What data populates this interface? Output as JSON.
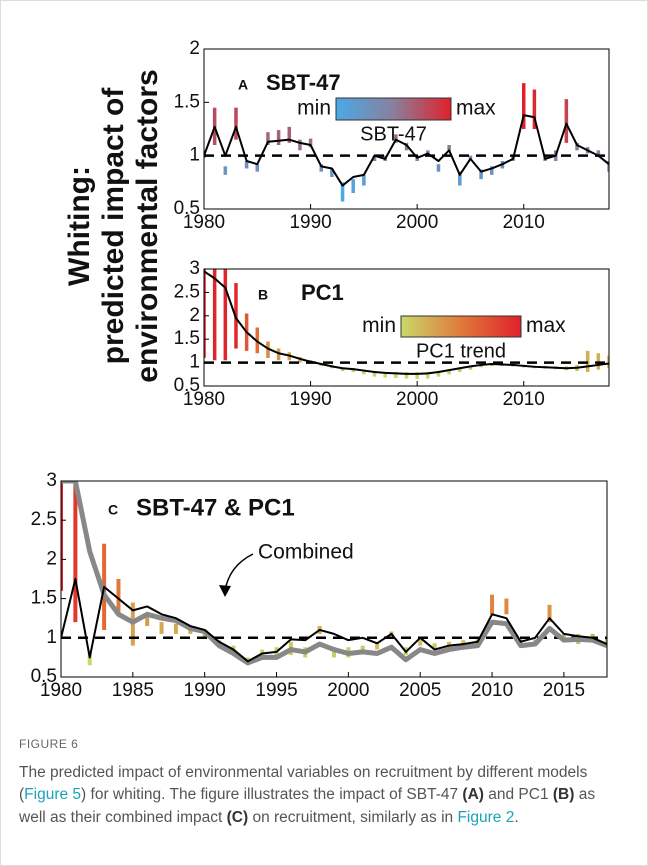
{
  "figure": {
    "y_label": [
      "Whiting:",
      "predicted impact of",
      "environmental factors"
    ]
  },
  "chart_data": [
    {
      "type": "line",
      "letter": "A",
      "title": "SBT-47",
      "x": [
        1980,
        1981,
        1982,
        1983,
        1984,
        1985,
        1986,
        1987,
        1988,
        1989,
        1990,
        1991,
        1992,
        1993,
        1994,
        1995,
        1996,
        1997,
        1998,
        1999,
        2000,
        2001,
        2002,
        2003,
        2004,
        2005,
        2006,
        2007,
        2008,
        2009,
        2010,
        2011,
        2012,
        2013,
        2014,
        2015,
        2016,
        2017,
        2018
      ],
      "series": [
        {
          "color": "#000000",
          "values": [
            1.0,
            1.27,
            1.0,
            1.27,
            0.95,
            0.92,
            1.13,
            1.14,
            1.15,
            1.12,
            1.1,
            0.9,
            0.88,
            0.72,
            0.8,
            0.82,
            1.0,
            0.97,
            1.15,
            1.1,
            0.98,
            1.02,
            0.95,
            1.05,
            0.82,
            0.97,
            0.85,
            0.88,
            0.92,
            0.97,
            1.38,
            1.36,
            0.97,
            1.0,
            1.3,
            1.1,
            1.05,
            1.0,
            0.92
          ]
        }
      ],
      "bars": {
        "low": [
          0.98,
          1.1,
          0.82,
          1.15,
          0.88,
          0.85,
          1.1,
          1.1,
          1.12,
          1.05,
          1.08,
          0.85,
          0.8,
          0.57,
          0.65,
          0.72,
          0.95,
          0.95,
          1.12,
          1.05,
          0.95,
          1.0,
          0.85,
          1.05,
          0.72,
          0.95,
          0.78,
          0.82,
          0.88,
          0.95,
          1.25,
          1.25,
          0.95,
          0.95,
          1.12,
          1.05,
          1.02,
          1.0,
          0.85
        ],
        "high": [
          1.02,
          1.45,
          0.9,
          1.45,
          0.95,
          0.92,
          1.22,
          1.24,
          1.27,
          1.15,
          1.16,
          0.92,
          0.88,
          0.75,
          0.78,
          0.82,
          1.0,
          1.0,
          1.2,
          1.12,
          1.0,
          1.05,
          0.92,
          1.1,
          0.85,
          1.0,
          0.87,
          0.9,
          0.95,
          1.0,
          1.68,
          1.62,
          1.0,
          1.05,
          1.53,
          1.12,
          1.08,
          1.05,
          0.95
        ]
      },
      "colorbar": {
        "min_label": "min",
        "max_label": "max",
        "label": "SBT-47",
        "colors": [
          "#4aa9e8",
          "#8a7f9c",
          "#e0212b"
        ]
      },
      "reference_line": 1,
      "xlim": [
        1980,
        2018
      ],
      "ylim": [
        0.5,
        2
      ],
      "xticks": [
        1980,
        1990,
        2000,
        2010
      ],
      "yticks": [
        0.5,
        1,
        1.5,
        2
      ]
    },
    {
      "type": "line",
      "letter": "B",
      "title": "PC1",
      "x": [
        1980,
        1981,
        1982,
        1983,
        1984,
        1985,
        1986,
        1987,
        1988,
        1989,
        1990,
        1991,
        1992,
        1993,
        1994,
        1995,
        1996,
        1997,
        1998,
        1999,
        2000,
        2001,
        2002,
        2003,
        2004,
        2005,
        2006,
        2007,
        2008,
        2009,
        2010,
        2011,
        2012,
        2013,
        2014,
        2015,
        2016,
        2017,
        2018
      ],
      "series": [
        {
          "color": "#000000",
          "values": [
            2.95,
            2.8,
            2.6,
            1.95,
            1.65,
            1.45,
            1.3,
            1.2,
            1.15,
            1.08,
            1.02,
            0.97,
            0.92,
            0.88,
            0.86,
            0.83,
            0.8,
            0.78,
            0.77,
            0.76,
            0.76,
            0.77,
            0.8,
            0.84,
            0.88,
            0.92,
            0.95,
            0.97,
            0.96,
            0.95,
            0.93,
            0.91,
            0.9,
            0.89,
            0.88,
            0.89,
            0.92,
            0.95,
            0.98
          ]
        }
      ],
      "bars": {
        "low": [
          1.1,
          1.05,
          1.05,
          1.3,
          1.25,
          1.2,
          1.1,
          1.05,
          1.05,
          1.0,
          0.98,
          0.93,
          0.88,
          0.82,
          0.8,
          0.75,
          0.7,
          0.68,
          0.67,
          0.66,
          0.65,
          0.66,
          0.7,
          0.75,
          0.8,
          0.85,
          0.9,
          0.93,
          0.93,
          0.92,
          0.9,
          0.88,
          0.87,
          0.86,
          0.84,
          0.82,
          0.8,
          0.85,
          0.88
        ],
        "high": [
          3,
          3,
          3,
          2.7,
          2.05,
          1.75,
          1.45,
          1.3,
          1.22,
          1.12,
          1.05,
          0.98,
          0.95,
          0.9,
          0.88,
          0.85,
          0.82,
          0.8,
          0.8,
          0.8,
          0.8,
          0.8,
          0.82,
          0.85,
          0.9,
          0.93,
          0.97,
          0.99,
          0.98,
          0.97,
          0.95,
          0.94,
          0.93,
          0.92,
          0.92,
          0.95,
          1.25,
          1.2,
          1.15
        ]
      },
      "colorbar": {
        "min_label": "min",
        "max_label": "max",
        "label": "PC1 trend",
        "colors": [
          "#c8d96a",
          "#e07a3a",
          "#e0212b"
        ]
      },
      "reference_line": 1,
      "xlim": [
        1980,
        2018
      ],
      "ylim": [
        0.5,
        3
      ],
      "xticks": [
        1980,
        1990,
        2000,
        2010
      ],
      "yticks": [
        0.5,
        1,
        1.5,
        2,
        2.5,
        3
      ]
    },
    {
      "type": "line",
      "letter": "C",
      "title": "SBT-47 & PC1",
      "annotation": "Combined",
      "x": [
        1980,
        1981,
        1982,
        1983,
        1984,
        1985,
        1986,
        1987,
        1988,
        1989,
        1990,
        1991,
        1992,
        1993,
        1994,
        1995,
        1996,
        1997,
        1998,
        1999,
        2000,
        2001,
        2002,
        2003,
        2004,
        2005,
        2006,
        2007,
        2008,
        2009,
        2010,
        2011,
        2012,
        2013,
        2014,
        2015,
        2016,
        2017,
        2018
      ],
      "series": [
        {
          "color": "#000000",
          "values": [
            1.0,
            1.75,
            0.75,
            1.65,
            1.5,
            1.35,
            1.4,
            1.3,
            1.25,
            1.15,
            1.1,
            0.95,
            0.85,
            0.7,
            0.8,
            0.82,
            0.98,
            0.97,
            1.1,
            1.05,
            0.97,
            1.0,
            0.93,
            1.05,
            0.82,
            1.0,
            0.85,
            0.9,
            0.92,
            0.95,
            1.3,
            1.25,
            0.95,
            1.0,
            1.25,
            1.05,
            1.02,
            1.0,
            0.92
          ]
        },
        {
          "color": "#888888",
          "values": [
            3.0,
            3.0,
            2.1,
            1.55,
            1.3,
            1.2,
            1.3,
            1.25,
            1.22,
            1.12,
            1.08,
            0.9,
            0.8,
            0.68,
            0.75,
            0.75,
            0.85,
            0.82,
            0.92,
            0.85,
            0.8,
            0.82,
            0.8,
            0.88,
            0.72,
            0.85,
            0.8,
            0.85,
            0.88,
            0.9,
            1.2,
            1.18,
            0.9,
            0.92,
            1.12,
            0.97,
            0.98,
            0.97,
            0.9
          ]
        }
      ],
      "bars": {
        "low": [
          1.6,
          1.2,
          0.65,
          1.1,
          1.3,
          0.9,
          1.15,
          1.05,
          1.05,
          1.05,
          1.0,
          0.92,
          0.82,
          0.68,
          0.75,
          0.78,
          0.78,
          0.75,
          1.05,
          0.75,
          0.75,
          0.8,
          0.85,
          1.02,
          0.78,
          0.9,
          0.85,
          0.88,
          0.9,
          0.92,
          1.3,
          1.3,
          0.92,
          0.92,
          1.2,
          0.95,
          0.92,
          0.95,
          0.9
        ],
        "high": [
          3,
          3,
          0.8,
          2.2,
          1.75,
          1.45,
          1.3,
          1.2,
          1.18,
          1.12,
          1.1,
          0.97,
          0.9,
          0.75,
          0.85,
          0.88,
          0.95,
          0.88,
          1.15,
          0.88,
          0.88,
          0.9,
          0.93,
          1.08,
          0.88,
          0.97,
          0.93,
          0.95,
          0.97,
          0.98,
          1.55,
          1.5,
          0.98,
          0.98,
          1.42,
          1.05,
          1.05,
          1.05,
          1.0
        ]
      },
      "reference_line": 1,
      "xlim": [
        1980,
        2018
      ],
      "ylim": [
        0.5,
        3
      ],
      "xticks": [
        1980,
        1985,
        1990,
        1995,
        2000,
        2005,
        2010,
        2015
      ],
      "yticks": [
        0.5,
        1,
        1.5,
        2,
        2.5,
        3
      ]
    }
  ],
  "caption": {
    "label": "FIGURE 6",
    "parts": [
      "The predicted impact of environmental variables on recruitment by different models (",
      "Figure 5",
      ") for whiting.  The figure illustrates the impact of SBT-47 ",
      "(A)",
      " and PC1 ",
      "(B)",
      " as well as their combined impact ",
      "(C)",
      " on recruitment, similarly as in ",
      "Figure 2",
      "."
    ]
  }
}
